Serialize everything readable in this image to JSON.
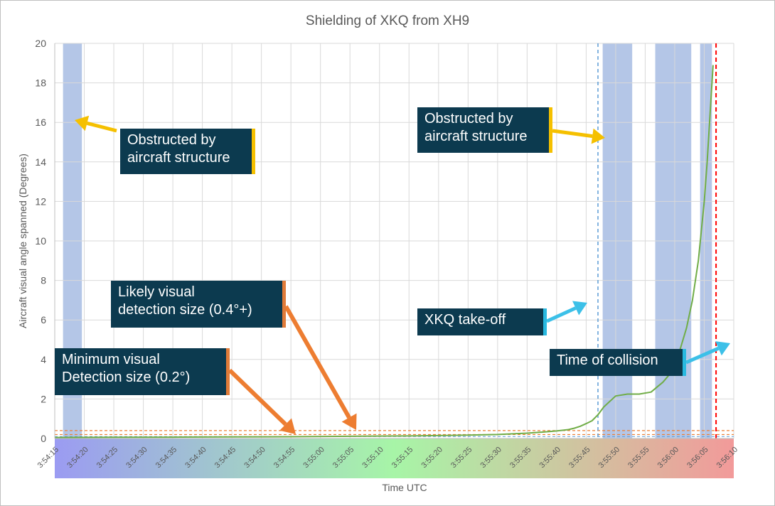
{
  "chart_data": {
    "type": "line",
    "title": "Shielding of XKQ from XH9",
    "xlabel": "Time UTC",
    "ylabel": "Aircraft visual angle spanned (Degrees)",
    "ylim": [
      0,
      20
    ],
    "yticks": [
      0,
      2,
      4,
      6,
      8,
      10,
      12,
      14,
      16,
      18,
      20
    ],
    "xlim_seconds": [
      0,
      115
    ],
    "xtick_labels": [
      "3:54:15",
      "3:54:20",
      "3:54:25",
      "3:54:30",
      "3:54:35",
      "3:54:40",
      "3:54:45",
      "3:54:50",
      "3:54:55",
      "3:55:00",
      "3:55:05",
      "3:55:10",
      "3:55:15",
      "3:55:20",
      "3:55:25",
      "3:55:30",
      "3:55:35",
      "3:55:40",
      "3:55:45",
      "3:55:50",
      "3:55:55",
      "3:56:00",
      "3:56:05",
      "3:56:10"
    ],
    "grid": true,
    "colors": {
      "series": "#70ad47",
      "obstruction": "#b4c6e7",
      "threshold": "#ed7d31",
      "takeoff_line": "#5b9bd5",
      "collision_line": "#ff0000",
      "arrow_yellow": "#f5c000",
      "arrow_orange": "#ed7d31",
      "arrow_blue": "#3cc0e8",
      "callout_bg": "#0c3a4f"
    },
    "series": [
      {
        "x_seconds": [
          0,
          10,
          20,
          30,
          40,
          50,
          60,
          70,
          75,
          80,
          83,
          85,
          87,
          88,
          89,
          90,
          91,
          92,
          93,
          95,
          97,
          99,
          101,
          102,
          103,
          104,
          105,
          106,
          107,
          108,
          109,
          110,
          110.5,
          111,
          111.5
        ],
        "values": [
          0.05,
          0.06,
          0.07,
          0.08,
          0.09,
          0.11,
          0.13,
          0.17,
          0.2,
          0.27,
          0.33,
          0.38,
          0.45,
          0.52,
          0.62,
          0.75,
          0.9,
          1.2,
          1.6,
          2.15,
          2.25,
          2.25,
          2.35,
          2.6,
          2.85,
          3.2,
          3.8,
          4.6,
          5.6,
          7.0,
          9.0,
          12.0,
          14.0,
          16.5,
          18.9
        ]
      }
    ],
    "obstructions_seconds": [
      [
        1.4,
        4.6
      ],
      [
        92.8,
        97.8
      ],
      [
        101.7,
        107.8
      ],
      [
        109.3,
        111.3
      ]
    ],
    "thresholds": [
      {
        "value": 0.4,
        "label": "Likely visual detection size (0.4°+)"
      },
      {
        "value": 0.2,
        "label": "Minimum visual Detection size (0.2°)"
      }
    ],
    "events": [
      {
        "x_seconds": 92.0,
        "label": "XKQ take-off"
      },
      {
        "x_seconds": 112.0,
        "label": "Time of collision"
      }
    ],
    "annotations": [
      {
        "id": "obstructed1",
        "lines": [
          "Obstructed by",
          "aircraft structure"
        ]
      },
      {
        "id": "obstructed2",
        "lines": [
          "Obstructed by",
          "aircraft structure"
        ]
      },
      {
        "id": "likely",
        "lines": [
          "Likely visual",
          "detection size (0.4°+)"
        ]
      },
      {
        "id": "minimum",
        "lines": [
          "Minimum visual",
          "Detection size (0.2°)"
        ]
      },
      {
        "id": "takeoff",
        "lines": [
          "XKQ take-off"
        ]
      },
      {
        "id": "collision",
        "lines": [
          "Time of collision"
        ]
      }
    ]
  }
}
